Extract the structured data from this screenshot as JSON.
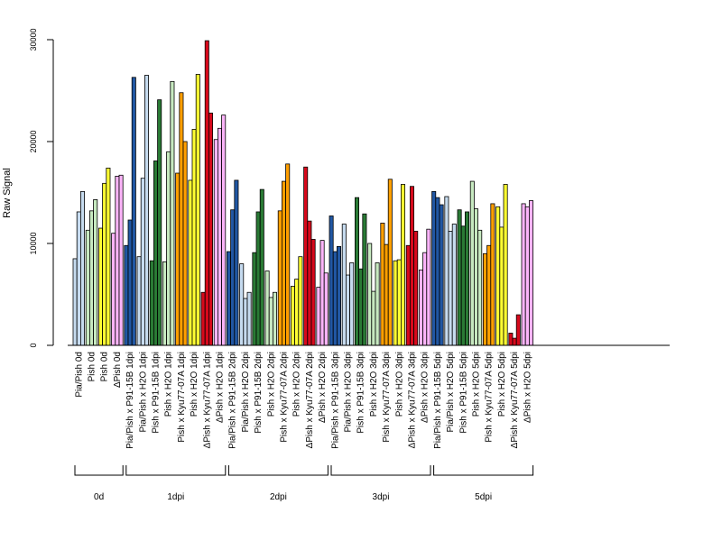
{
  "chart_data": {
    "type": "bar",
    "ylabel": "Raw Signal",
    "xlabel": "",
    "ylim": [
      0,
      30000
    ],
    "yticks": [
      0,
      10000,
      20000,
      30000
    ],
    "categories": [
      "Pia/Pish 0d",
      "Pish 0d",
      "Pish 0d",
      "ΔPish 0d",
      "Pia/Pish x P91-15B 1dpi",
      "Pia/Pish x H2O 1dpi",
      "Pish x P91-15B 1dpi",
      "Pish x H2O 1dpi",
      "Pish x Kyu77-07A 1dpi",
      "Pish x H2O 1dpi",
      "ΔPish x Kyu77-07A 1dpi",
      "ΔPish x H2O 1dpi",
      "Pia/Pish x P91-15B 2dpi",
      "Pia/Pish x H2O 2dpi",
      "Pish x P91-15B 2dpi",
      "Pish x H2O 2dpi",
      "Pish x Kyu77-07A 2dpi",
      "Pish x H2O 2dpi",
      "ΔPish x Kyu77-07A 2dpi",
      "ΔPish x H2O 2dpi",
      "Pia/Pish x P91-15B 3dpi",
      "Pia/Pish x H2O 3dpi",
      "Pish x P91-15B 3dpi",
      "Pish x H2O 3dpi",
      "Pish x Kyu77-07A 3dpi",
      "Pish x H2O 3dpi",
      "ΔPish x Kyu77-07A 3dpi",
      "ΔPish x H2O 3dpi",
      "Pia/Pish x P91-15B 5dpi",
      "Pia/Pish x H2O 5dpi",
      "Pish x P91-15B 5dpi",
      "Pish x H2O 5dpi",
      "Pish x Kyu77-07A 5dpi",
      "Pish x H2O 5dpi",
      "ΔPish x Kyu77-07A 5dpi",
      "ΔPish x H2O 5dpi"
    ],
    "colors": [
      "#c6dbef",
      "#c7e9c0",
      "#ffff33",
      "#fbb4f9",
      "#2157a3",
      "#c6dbef",
      "#2a7a35",
      "#c7e9c0",
      "#ff9f00",
      "#ffff33",
      "#d7091c",
      "#fbb4f9",
      "#2157a3",
      "#c6dbef",
      "#2a7a35",
      "#c7e9c0",
      "#ff9f00",
      "#ffff33",
      "#d7091c",
      "#fbb4f9",
      "#2157a3",
      "#c6dbef",
      "#2a7a35",
      "#c7e9c0",
      "#ff9f00",
      "#ffff33",
      "#d7091c",
      "#fbb4f9",
      "#2157a3",
      "#c6dbef",
      "#2a7a35",
      "#c7e9c0",
      "#ff9f00",
      "#ffff33",
      "#d7091c",
      "#fbb4f9"
    ],
    "values": [
      [
        8500,
        13100,
        15100
      ],
      [
        11300,
        13200,
        14300
      ],
      [
        11500,
        15900,
        17400
      ],
      [
        11000,
        16600,
        16700
      ],
      [
        9800,
        12300,
        26300
      ],
      [
        8700,
        16400,
        26500
      ],
      [
        8300,
        18100,
        24100
      ],
      [
        8200,
        19000,
        25900
      ],
      [
        16900,
        24800,
        20000
      ],
      [
        16200,
        21200,
        26600
      ],
      [
        5200,
        29900,
        22800
      ],
      [
        20200,
        21300,
        22600
      ],
      [
        9200,
        13300,
        16200
      ],
      [
        8000,
        4600,
        5200
      ],
      [
        9100,
        13100,
        15300
      ],
      [
        7300,
        4700,
        5200
      ],
      [
        13200,
        16100,
        17800
      ],
      [
        5800,
        6500,
        8700
      ],
      [
        17500,
        12200,
        10400
      ],
      [
        5700,
        10300,
        7100
      ],
      [
        12700,
        9200,
        9700
      ],
      [
        11900,
        6900,
        8100
      ],
      [
        14500,
        7500,
        12900
      ],
      [
        10000,
        5300,
        8100
      ],
      [
        12000,
        9900,
        16300
      ],
      [
        8300,
        8400,
        15800
      ],
      [
        9800,
        15600,
        11200
      ],
      [
        7400,
        9100,
        11400
      ],
      [
        15100,
        14500,
        13800
      ],
      [
        14600,
        11200,
        11900
      ],
      [
        13300,
        11700,
        13100
      ],
      [
        16100,
        13400,
        11300
      ],
      [
        9000,
        9800,
        13900
      ],
      [
        13600,
        11600,
        15800
      ],
      [
        1200,
        700,
        3000
      ],
      [
        13900,
        13600,
        14200
      ]
    ],
    "groups": [
      {
        "label": "0d",
        "start": 0,
        "end": 3
      },
      {
        "label": "1dpi",
        "start": 4,
        "end": 11
      },
      {
        "label": "2dpi",
        "start": 12,
        "end": 19
      },
      {
        "label": "3dpi",
        "start": 20,
        "end": 27
      },
      {
        "label": "5dpi",
        "start": 28,
        "end": 35
      }
    ],
    "grid": false,
    "legend": "none"
  }
}
